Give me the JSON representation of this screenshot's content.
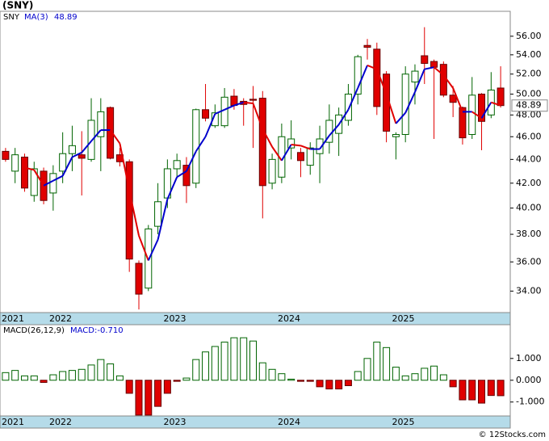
{
  "chart_data": [
    {
      "type": "candlestick",
      "title": "(SNY)",
      "ticker": "SNY",
      "categories": [
        "2021",
        null,
        null,
        null,
        null,
        "2022",
        null,
        null,
        null,
        null,
        null,
        null,
        null,
        null,
        null,
        null,
        null,
        "2023",
        null,
        null,
        null,
        null,
        null,
        null,
        null,
        null,
        null,
        null,
        null,
        "2024",
        null,
        null,
        null,
        null,
        null,
        null,
        null,
        null,
        null,
        null,
        null,
        "2025",
        null,
        null,
        null,
        null,
        null,
        null,
        null,
        null,
        null,
        null,
        null
      ],
      "open": [
        44.7,
        43.0,
        44.2,
        41.0,
        43.0,
        41.2,
        43.0,
        44.5,
        44.4,
        44.0,
        46.0,
        48.7,
        44.4,
        43.8,
        35.9,
        34.2,
        38.6,
        40.8,
        43.2,
        43.5,
        42.0,
        48.5,
        47.0,
        47.0,
        49.8,
        49.3,
        49.5,
        49.6,
        42.0,
        42.5,
        45.0,
        44.6,
        43.5,
        44.5,
        45.5,
        46.3,
        47.5,
        50.0,
        55.0,
        54.6,
        52.0,
        46.0,
        46.2,
        51.2,
        53.9,
        53.3,
        53.0,
        49.9,
        48.7,
        46.2,
        50.0,
        48.0,
        50.6
      ],
      "high": [
        45.0,
        45.0,
        44.5,
        43.8,
        43.3,
        43.5,
        46.4,
        47.0,
        46.5,
        49.6,
        49.6,
        48.8,
        45.0,
        44.0,
        36.1,
        38.7,
        42.0,
        44.0,
        44.5,
        44.2,
        48.6,
        51.0,
        49.0,
        50.6,
        50.5,
        49.6,
        50.8,
        50.3,
        44.5,
        47.2,
        47.5,
        45.0,
        45.5,
        47.0,
        49.0,
        48.7,
        51.0,
        54.0,
        55.7,
        55.3,
        52.3,
        46.4,
        52.8,
        53.0,
        57.0,
        53.5,
        53.3,
        50.8,
        48.8,
        51.7,
        50.1,
        52.2,
        52.8
      ],
      "low": [
        43.8,
        42.0,
        41.3,
        40.5,
        40.3,
        39.8,
        42.0,
        43.0,
        41.0,
        43.8,
        43.0,
        44.0,
        43.4,
        35.3,
        32.8,
        34.0,
        38.0,
        40.0,
        42.5,
        40.4,
        41.6,
        47.4,
        46.8,
        46.8,
        48.5,
        47.0,
        45.0,
        39.2,
        41.5,
        42.0,
        44.0,
        42.5,
        42.7,
        42.0,
        44.5,
        44.3,
        47.0,
        49.0,
        53.5,
        48.0,
        45.5,
        44.0,
        45.5,
        49.0,
        51.0,
        45.8,
        49.7,
        47.8,
        45.3,
        45.8,
        44.8,
        47.7,
        48.7
      ],
      "close": [
        44.0,
        44.4,
        41.6,
        43.2,
        40.6,
        42.8,
        44.5,
        45.2,
        44.1,
        47.5,
        48.3,
        44.1,
        43.8,
        36.2,
        33.8,
        38.4,
        40.5,
        43.2,
        43.9,
        41.8,
        48.5,
        47.7,
        48.2,
        49.7,
        48.9,
        49.0,
        49.4,
        41.8,
        44.0,
        46.0,
        45.8,
        43.9,
        45.0,
        45.8,
        47.5,
        48.0,
        50.0,
        53.8,
        54.8,
        48.8,
        46.5,
        46.2,
        52.0,
        52.3,
        53.1,
        52.7,
        49.9,
        49.2,
        45.9,
        49.9,
        47.4,
        50.4,
        48.89
      ],
      "up_color": "#006400",
      "down_color": "#e00000",
      "ma": {
        "name": "MA(3)",
        "value_label": "48.89",
        "rise_color": "#0000cc",
        "fall_color": "#e00000",
        "values": [
          null,
          null,
          43.3,
          43.1,
          41.8,
          42.2,
          42.6,
          44.2,
          44.6,
          45.6,
          46.6,
          46.6,
          45.4,
          41.4,
          37.9,
          36.1,
          37.6,
          40.7,
          42.5,
          43.0,
          44.7,
          46.0,
          48.1,
          48.5,
          48.9,
          49.2,
          49.1,
          46.7,
          45.1,
          43.9,
          45.3,
          45.2,
          44.9,
          44.9,
          46.1,
          47.1,
          48.5,
          50.6,
          52.9,
          52.5,
          50.0,
          47.2,
          48.2,
          50.2,
          52.5,
          52.7,
          51.9,
          50.6,
          48.3,
          48.3,
          47.7,
          49.2,
          48.9
        ]
      },
      "last_price": {
        "value": 48.89,
        "label": "48.89"
      },
      "log_scale": true,
      "ylim": [
        32.6,
        58.8
      ],
      "yticks": [
        {
          "value": 34,
          "label": "34.00"
        },
        {
          "value": 36,
          "label": "36.00"
        },
        {
          "value": 38,
          "label": "38.00"
        },
        {
          "value": 40,
          "label": "40.00"
        },
        {
          "value": 42,
          "label": "42.00"
        },
        {
          "value": 44,
          "label": "44.00"
        },
        {
          "value": 46,
          "label": "46.00"
        },
        {
          "value": 48,
          "label": "48.00"
        },
        {
          "value": 50,
          "label": "50.00"
        },
        {
          "value": 52,
          "label": "52.00"
        },
        {
          "value": 54,
          "label": "54.00"
        },
        {
          "value": 56,
          "label": "56.00"
        }
      ]
    },
    {
      "type": "bar",
      "title": "MACD(26,12,9)",
      "value_label": "MACD:-0.710",
      "categories": [
        "2021",
        null,
        null,
        null,
        null,
        "2022",
        null,
        null,
        null,
        null,
        null,
        null,
        null,
        null,
        null,
        null,
        null,
        "2023",
        null,
        null,
        null,
        null,
        null,
        null,
        null,
        null,
        null,
        null,
        null,
        "2024",
        null,
        null,
        null,
        null,
        null,
        null,
        null,
        null,
        null,
        null,
        null,
        "2025",
        null,
        null,
        null,
        null,
        null,
        null,
        null,
        null,
        null,
        null,
        null
      ],
      "values": [
        0.35,
        0.45,
        0.2,
        0.2,
        -0.1,
        0.25,
        0.4,
        0.45,
        0.5,
        0.7,
        0.95,
        0.75,
        0.2,
        -0.6,
        -1.6,
        -1.6,
        -1.2,
        -0.6,
        -0.05,
        0.1,
        0.95,
        1.3,
        1.55,
        1.75,
        1.95,
        1.95,
        1.8,
        0.8,
        0.5,
        0.3,
        0.05,
        -0.05,
        -0.05,
        -0.3,
        -0.4,
        -0.4,
        -0.25,
        0.4,
        1.0,
        1.75,
        1.5,
        0.6,
        0.2,
        0.3,
        0.55,
        0.65,
        0.25,
        -0.3,
        -0.9,
        -0.9,
        -1.05,
        -0.7,
        -0.71
      ],
      "pos_color": "#006400",
      "neg_color": "#e00000",
      "ylim": [
        -1.64,
        2.55
      ],
      "yticks": [
        {
          "value": -1,
          "label": "-1.000"
        },
        {
          "value": 0,
          "label": "0.000"
        },
        {
          "value": 1,
          "label": "1.000"
        }
      ]
    }
  ],
  "footer": "© 12Stocks.com"
}
